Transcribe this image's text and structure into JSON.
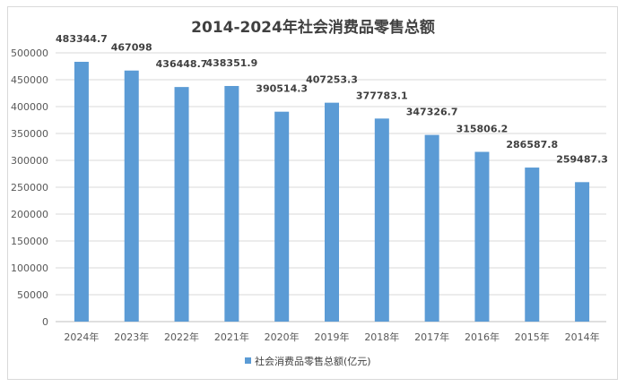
{
  "chart_data": {
    "type": "bar",
    "title": "2014-2024年社会消费品零售总额",
    "categories": [
      "2024年",
      "2023年",
      "2022年",
      "2021年",
      "2020年",
      "2019年",
      "2018年",
      "2017年",
      "2016年",
      "2015年",
      "2014年"
    ],
    "series": [
      {
        "name": "社会消费品零售总额(亿元)",
        "values": [
          483344.7,
          467098,
          436448.7,
          438351.9,
          390514.3,
          407253.3,
          377783.1,
          347326.7,
          315806.2,
          286587.8,
          259487.3
        ],
        "color": "#5b9bd5"
      }
    ],
    "data_labels": [
      "483344.7",
      "467098",
      "436448.7",
      "438351.9",
      "390514.3",
      "407253.3",
      "377783.1",
      "347326.7",
      "315806.2",
      "286587.8",
      "259487.3"
    ],
    "ylim": [
      0,
      500000
    ],
    "yticks": [
      "0",
      "50000",
      "100000",
      "150000",
      "200000",
      "250000",
      "300000",
      "350000",
      "400000",
      "450000",
      "500000"
    ],
    "xlabel": "",
    "ylabel": "",
    "grid": true,
    "legend": "bottom"
  }
}
